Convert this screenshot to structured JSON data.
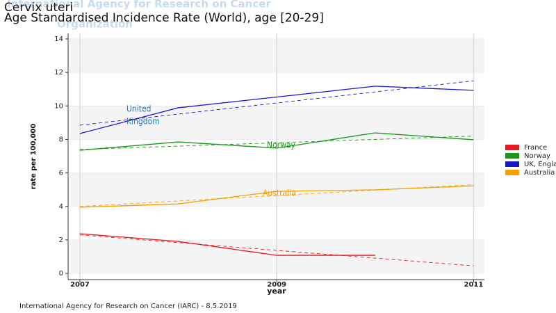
{
  "chart_data": {
    "type": "line",
    "watermark": [
      "International Agency for Research on Cancer",
      "Organization"
    ],
    "title": "Cervix uteri",
    "subtitle": "Age Standardised Incidence Rate (World), age [20-29]",
    "x_label": "year",
    "y_label": "rate per 100,000",
    "footer": "International Agency for Research on Cancer (IARC) - 8.5.2019",
    "x": [
      2007,
      2008,
      2009,
      2010,
      2011
    ],
    "trend_x": [
      2007,
      2011
    ],
    "series": [
      {
        "name": "France",
        "color": "#e41a1c",
        "values": [
          2.37,
          1.91,
          1.08,
          1.08,
          null
        ],
        "trend": [
          2.3,
          0.45
        ]
      },
      {
        "name": "Norway",
        "color": "#1a961a",
        "values": [
          7.35,
          7.85,
          7.48,
          8.39,
          7.98
        ],
        "trend": [
          7.4,
          8.2
        ]
      },
      {
        "name": "UK, England",
        "color": "#1717c4",
        "values": [
          8.35,
          9.89,
          10.53,
          11.18,
          10.93
        ],
        "trend": [
          8.85,
          11.5
        ]
      },
      {
        "name": "Australia",
        "color": "#f5a000",
        "values": [
          3.95,
          4.15,
          4.9,
          4.99,
          5.23
        ],
        "trend": [
          4.0,
          5.3
        ]
      }
    ],
    "annotations": [
      {
        "text": "United",
        "series": 2
      },
      {
        "text": "Kingdom",
        "series": 2
      },
      {
        "text": "Norway",
        "series": 1
      },
      {
        "text": "Australia",
        "series": 3
      }
    ],
    "xlim": [
      2006.88,
      2011.11
    ],
    "ylim": [
      -0.37,
      14.33
    ],
    "xticks": [
      2007,
      2009,
      2011
    ],
    "yticks": [
      0,
      2,
      4,
      6,
      8,
      10,
      12,
      14
    ],
    "grid": true
  }
}
